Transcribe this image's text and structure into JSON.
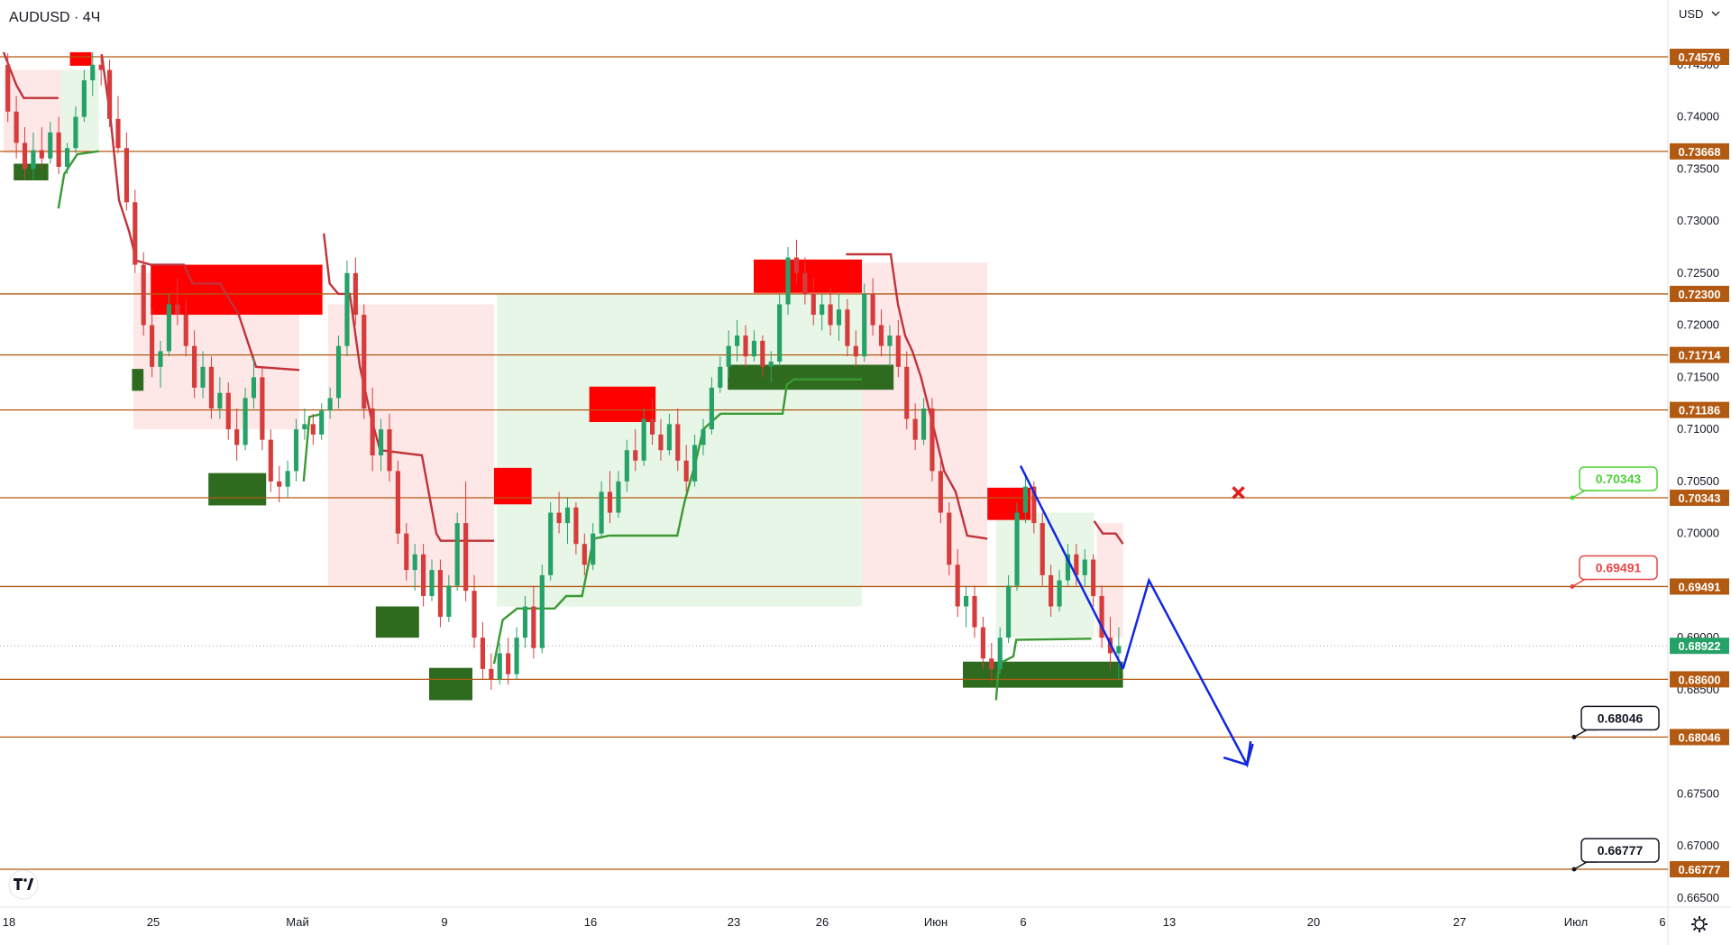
{
  "header": {
    "title": "AUDUSD · 4Ч",
    "currency_label": "USD"
  },
  "colors": {
    "level_line": "#b35a12",
    "level_label_bg": "#b35a12",
    "current_price_bg": "#26a269",
    "candle_up": "#26a269",
    "candle_down": "#d63c3c",
    "supply_zone": "#ff0000",
    "demand_zone": "#2e6b1f",
    "trail_down": "#c0333b",
    "trail_up": "#3a9a33",
    "projection": "#1226e0",
    "callout_green": "#4cd137",
    "callout_red": "#e84545",
    "callout_black": "#131722"
  },
  "icons": {
    "logo": "tradingview-logo-icon",
    "settings": "gear-icon",
    "cross": "cross-icon",
    "dropdown": "chevron-down-icon"
  },
  "chart_data": {
    "type": "candlestick",
    "symbol": "AUDUSD",
    "timeframe": "4Ч",
    "ylim": [
      0.6625,
      0.7475
    ],
    "y_ticks": [
      "0.66500",
      "0.67000",
      "0.67500",
      "0.68000",
      "0.68500",
      "0.69000",
      "0.69500",
      "0.70000",
      "0.70500",
      "0.71000",
      "0.71500",
      "0.72000",
      "0.72500",
      "0.73000",
      "0.73500",
      "0.74000",
      "0.74500"
    ],
    "x_ticks": [
      "18",
      "25",
      "Май",
      "9",
      "16",
      "23",
      "26",
      "Июн",
      "6",
      "13",
      "20",
      "27",
      "Июл",
      "6"
    ],
    "current_price": "0.68922",
    "levels": [
      "0.74576",
      "0.73668",
      "0.72300",
      "0.71714",
      "0.71186",
      "0.70343",
      "0.69491",
      "0.68600",
      "0.68046",
      "0.66777"
    ],
    "callouts": [
      {
        "label": "0.70343",
        "style": "green"
      },
      {
        "label": "0.69491",
        "style": "red"
      },
      {
        "label": "0.68046",
        "style": "black"
      },
      {
        "label": "0.66777",
        "style": "black"
      }
    ],
    "supply_zones": [
      {
        "t0": 0.046,
        "t1": 0.061,
        "p0": 0.7449,
        "p1": 0.7462
      },
      {
        "t0": 0.102,
        "t1": 0.221,
        "p0": 0.721,
        "p1": 0.7258
      },
      {
        "t0": 0.34,
        "t1": 0.366,
        "p0": 0.7028,
        "p1": 0.7063
      },
      {
        "t0": 0.406,
        "t1": 0.452,
        "p0": 0.7107,
        "p1": 0.7141
      },
      {
        "t0": 0.52,
        "t1": 0.595,
        "p0": 0.7231,
        "p1": 0.7263
      },
      {
        "t0": 0.682,
        "t1": 0.712,
        "p0": 0.7013,
        "p1": 0.7044
      }
    ],
    "demand_zones": [
      {
        "t0": 0.007,
        "t1": 0.031,
        "p0": 0.7339,
        "p1": 0.7355
      },
      {
        "t0": 0.089,
        "t1": 0.097,
        "p0": 0.7137,
        "p1": 0.7158
      },
      {
        "t0": 0.142,
        "t1": 0.182,
        "p0": 0.7027,
        "p1": 0.7058
      },
      {
        "t0": 0.258,
        "t1": 0.288,
        "p0": 0.69,
        "p1": 0.693
      },
      {
        "t0": 0.295,
        "t1": 0.325,
        "p0": 0.684,
        "p1": 0.6871
      },
      {
        "t0": 0.502,
        "t1": 0.617,
        "p0": 0.7138,
        "p1": 0.7162
      },
      {
        "t0": 0.665,
        "t1": 0.776,
        "p0": 0.6852,
        "p1": 0.6877
      }
    ],
    "trail_down_segments": [
      [
        [
          0.0,
          0.7462
        ],
        [
          0.009,
          0.743
        ],
        [
          0.014,
          0.7418
        ],
        [
          0.038,
          0.7418
        ]
      ],
      [
        [
          0.068,
          0.746
        ],
        [
          0.074,
          0.74
        ],
        [
          0.08,
          0.732
        ],
        [
          0.087,
          0.729
        ],
        [
          0.092,
          0.7262
        ],
        [
          0.102,
          0.7258
        ],
        [
          0.125,
          0.7258
        ],
        [
          0.131,
          0.724
        ],
        [
          0.15,
          0.724
        ],
        [
          0.163,
          0.721
        ],
        [
          0.175,
          0.716
        ],
        [
          0.205,
          0.7157
        ]
      ],
      [
        [
          0.222,
          0.7288
        ],
        [
          0.226,
          0.724
        ],
        [
          0.232,
          0.723
        ],
        [
          0.24,
          0.723
        ],
        [
          0.247,
          0.716
        ],
        [
          0.255,
          0.711
        ],
        [
          0.261,
          0.708
        ],
        [
          0.29,
          0.7075
        ],
        [
          0.3,
          0.7
        ],
        [
          0.303,
          0.6993
        ],
        [
          0.34,
          0.6993
        ]
      ],
      [
        [
          0.584,
          0.7268
        ],
        [
          0.615,
          0.7268
        ],
        [
          0.62,
          0.722
        ],
        [
          0.625,
          0.719
        ],
        [
          0.63,
          0.7175
        ],
        [
          0.636,
          0.715
        ],
        [
          0.645,
          0.71
        ],
        [
          0.652,
          0.706
        ],
        [
          0.66,
          0.704
        ],
        [
          0.668,
          0.6998
        ],
        [
          0.682,
          0.6995
        ]
      ],
      [
        [
          0.756,
          0.7012
        ],
        [
          0.762,
          0.7
        ],
        [
          0.771,
          0.7
        ],
        [
          0.776,
          0.699
        ]
      ]
    ],
    "trail_up_segments": [
      [
        [
          0.038,
          0.7312
        ],
        [
          0.042,
          0.7345
        ],
        [
          0.051,
          0.7364
        ],
        [
          0.066,
          0.7367
        ]
      ],
      [
        [
          0.208,
          0.705
        ],
        [
          0.212,
          0.7112
        ],
        [
          0.221,
          0.7115
        ]
      ],
      [
        [
          0.34,
          0.6875
        ],
        [
          0.346,
          0.6917
        ],
        [
          0.356,
          0.6928
        ],
        [
          0.382,
          0.6928
        ],
        [
          0.39,
          0.694
        ],
        [
          0.401,
          0.694
        ],
        [
          0.409,
          0.6995
        ],
        [
          0.42,
          0.6998
        ],
        [
          0.467,
          0.6998
        ],
        [
          0.472,
          0.703
        ],
        [
          0.48,
          0.707
        ],
        [
          0.485,
          0.71
        ],
        [
          0.497,
          0.7115
        ],
        [
          0.54,
          0.7115
        ],
        [
          0.543,
          0.7143
        ],
        [
          0.548,
          0.7148
        ],
        [
          0.595,
          0.7148
        ]
      ],
      [
        [
          0.688,
          0.684
        ],
        [
          0.69,
          0.6875
        ],
        [
          0.7,
          0.6882
        ],
        [
          0.702,
          0.6898
        ],
        [
          0.754,
          0.6899
        ]
      ]
    ],
    "shade_down": [
      {
        "t0": 0.0,
        "t1": 0.04,
        "top": 0.7445,
        "bot": 0.7365
      },
      {
        "t0": 0.09,
        "t1": 0.205,
        "top": 0.725,
        "bot": 0.71
      },
      {
        "t0": 0.225,
        "t1": 0.34,
        "top": 0.722,
        "bot": 0.695
      },
      {
        "t0": 0.595,
        "t1": 0.682,
        "top": 0.726,
        "bot": 0.695
      },
      {
        "t0": 0.758,
        "t1": 0.776,
        "top": 0.701,
        "bot": 0.69
      }
    ],
    "shade_up": [
      {
        "t0": 0.04,
        "t1": 0.066,
        "top": 0.7445,
        "bot": 0.7368
      },
      {
        "t0": 0.342,
        "t1": 0.595,
        "top": 0.723,
        "bot": 0.693
      },
      {
        "t0": 0.688,
        "t1": 0.756,
        "top": 0.702,
        "bot": 0.69
      }
    ],
    "trendline": [
      [
        0.705,
        0.7065
      ],
      [
        0.776,
        0.687
      ]
    ],
    "projection": [
      [
        0.776,
        0.687
      ],
      [
        0.794,
        0.6955
      ],
      [
        0.862,
        0.6778
      ],
      [
        0.866,
        0.6798
      ]
    ],
    "cross_marker": {
      "t": 0.856,
      "p": 0.7034
    },
    "candles": [
      [
        0.745,
        0.7461,
        0.7395,
        0.7405
      ],
      [
        0.7405,
        0.742,
        0.736,
        0.7375
      ],
      [
        0.7375,
        0.739,
        0.734,
        0.735
      ],
      [
        0.735,
        0.7385,
        0.734,
        0.7368
      ],
      [
        0.7368,
        0.739,
        0.735,
        0.736
      ],
      [
        0.736,
        0.7395,
        0.7355,
        0.7385
      ],
      [
        0.7385,
        0.74,
        0.7345,
        0.7352
      ],
      [
        0.7352,
        0.7375,
        0.7345,
        0.737
      ],
      [
        0.737,
        0.741,
        0.7365,
        0.74
      ],
      [
        0.74,
        0.7445,
        0.7395,
        0.7435
      ],
      [
        0.7435,
        0.7462,
        0.742,
        0.745
      ],
      [
        0.745,
        0.746,
        0.743,
        0.7445
      ],
      [
        0.7445,
        0.7455,
        0.739,
        0.7398
      ],
      [
        0.7398,
        0.742,
        0.7365,
        0.737
      ],
      [
        0.737,
        0.7385,
        0.731,
        0.7318
      ],
      [
        0.7318,
        0.733,
        0.725,
        0.7258
      ],
      [
        0.7258,
        0.727,
        0.719,
        0.72
      ],
      [
        0.72,
        0.7215,
        0.715,
        0.716
      ],
      [
        0.716,
        0.7185,
        0.714,
        0.7175
      ],
      [
        0.7175,
        0.723,
        0.717,
        0.722
      ],
      [
        0.722,
        0.7245,
        0.72,
        0.721
      ],
      [
        0.721,
        0.7225,
        0.717,
        0.718
      ],
      [
        0.718,
        0.7195,
        0.713,
        0.714
      ],
      [
        0.714,
        0.7175,
        0.713,
        0.716
      ],
      [
        0.716,
        0.717,
        0.711,
        0.712
      ],
      [
        0.712,
        0.715,
        0.711,
        0.7135
      ],
      [
        0.7135,
        0.7145,
        0.709,
        0.71
      ],
      [
        0.71,
        0.712,
        0.707,
        0.7085
      ],
      [
        0.7085,
        0.714,
        0.708,
        0.713
      ],
      [
        0.713,
        0.717,
        0.712,
        0.715
      ],
      [
        0.715,
        0.716,
        0.708,
        0.709
      ],
      [
        0.709,
        0.71,
        0.704,
        0.705
      ],
      [
        0.705,
        0.7065,
        0.703,
        0.7045
      ],
      [
        0.7045,
        0.707,
        0.7035,
        0.706
      ],
      [
        0.706,
        0.711,
        0.705,
        0.71
      ],
      [
        0.71,
        0.712,
        0.709,
        0.7105
      ],
      [
        0.7105,
        0.7115,
        0.7085,
        0.7095
      ],
      [
        0.7095,
        0.7125,
        0.709,
        0.7118
      ],
      [
        0.7118,
        0.714,
        0.711,
        0.713
      ],
      [
        0.713,
        0.719,
        0.712,
        0.718
      ],
      [
        0.718,
        0.7262,
        0.717,
        0.725
      ],
      [
        0.725,
        0.7265,
        0.72,
        0.721
      ],
      [
        0.721,
        0.722,
        0.711,
        0.712
      ],
      [
        0.712,
        0.714,
        0.706,
        0.7075
      ],
      [
        0.7075,
        0.711,
        0.706,
        0.71
      ],
      [
        0.71,
        0.7115,
        0.705,
        0.706
      ],
      [
        0.706,
        0.707,
        0.699,
        0.7
      ],
      [
        0.7,
        0.701,
        0.6955,
        0.6965
      ],
      [
        0.6965,
        0.699,
        0.6945,
        0.698
      ],
      [
        0.698,
        0.699,
        0.693,
        0.694
      ],
      [
        0.694,
        0.6975,
        0.6935,
        0.6965
      ],
      [
        0.6965,
        0.6975,
        0.691,
        0.692
      ],
      [
        0.692,
        0.696,
        0.6915,
        0.695
      ],
      [
        0.695,
        0.702,
        0.6945,
        0.701
      ],
      [
        0.701,
        0.705,
        0.6935,
        0.6945
      ],
      [
        0.6945,
        0.696,
        0.689,
        0.69
      ],
      [
        0.69,
        0.6915,
        0.686,
        0.687
      ],
      [
        0.687,
        0.6885,
        0.685,
        0.686
      ],
      [
        0.686,
        0.6895,
        0.6855,
        0.6885
      ],
      [
        0.6885,
        0.69,
        0.6855,
        0.6865
      ],
      [
        0.6865,
        0.691,
        0.686,
        0.69
      ],
      [
        0.69,
        0.694,
        0.689,
        0.693
      ],
      [
        0.693,
        0.695,
        0.688,
        0.689
      ],
      [
        0.689,
        0.697,
        0.6885,
        0.696
      ],
      [
        0.696,
        0.703,
        0.6955,
        0.702
      ],
      [
        0.702,
        0.704,
        0.7,
        0.701
      ],
      [
        0.701,
        0.7035,
        0.699,
        0.7025
      ],
      [
        0.7025,
        0.703,
        0.698,
        0.699
      ],
      [
        0.699,
        0.7,
        0.696,
        0.697
      ],
      [
        0.697,
        0.701,
        0.6965,
        0.7
      ],
      [
        0.7,
        0.705,
        0.6995,
        0.704
      ],
      [
        0.704,
        0.706,
        0.701,
        0.702
      ],
      [
        0.702,
        0.706,
        0.7015,
        0.705
      ],
      [
        0.705,
        0.709,
        0.704,
        0.708
      ],
      [
        0.708,
        0.71,
        0.706,
        0.707
      ],
      [
        0.707,
        0.712,
        0.7065,
        0.711
      ],
      [
        0.711,
        0.713,
        0.7085,
        0.7095
      ],
      [
        0.7095,
        0.711,
        0.707,
        0.708
      ],
      [
        0.708,
        0.7115,
        0.7075,
        0.7105
      ],
      [
        0.7105,
        0.712,
        0.706,
        0.707
      ],
      [
        0.707,
        0.7085,
        0.704,
        0.705
      ],
      [
        0.705,
        0.7095,
        0.7045,
        0.7085
      ],
      [
        0.7085,
        0.711,
        0.7075,
        0.71
      ],
      [
        0.71,
        0.715,
        0.7095,
        0.714
      ],
      [
        0.714,
        0.717,
        0.7135,
        0.716
      ],
      [
        0.716,
        0.7195,
        0.715,
        0.718
      ],
      [
        0.718,
        0.7205,
        0.7165,
        0.719
      ],
      [
        0.719,
        0.72,
        0.716,
        0.717
      ],
      [
        0.717,
        0.7195,
        0.7165,
        0.7185
      ],
      [
        0.7185,
        0.719,
        0.715,
        0.716
      ],
      [
        0.716,
        0.7175,
        0.7145,
        0.7165
      ],
      [
        0.7165,
        0.723,
        0.716,
        0.722
      ],
      [
        0.722,
        0.7275,
        0.721,
        0.7265
      ],
      [
        0.7265,
        0.7282,
        0.724,
        0.725
      ],
      [
        0.725,
        0.7265,
        0.722,
        0.723
      ],
      [
        0.723,
        0.7245,
        0.72,
        0.721
      ],
      [
        0.721,
        0.723,
        0.7195,
        0.722
      ],
      [
        0.722,
        0.7235,
        0.719,
        0.72
      ],
      [
        0.72,
        0.723,
        0.7185,
        0.7215
      ],
      [
        0.7215,
        0.7225,
        0.717,
        0.718
      ],
      [
        0.718,
        0.7195,
        0.716,
        0.717
      ],
      [
        0.717,
        0.724,
        0.7165,
        0.723
      ],
      [
        0.723,
        0.7245,
        0.719,
        0.72
      ],
      [
        0.72,
        0.7215,
        0.717,
        0.718
      ],
      [
        0.718,
        0.72,
        0.716,
        0.719
      ],
      [
        0.719,
        0.7205,
        0.715,
        0.716
      ],
      [
        0.716,
        0.7175,
        0.71,
        0.711
      ],
      [
        0.711,
        0.7125,
        0.708,
        0.709
      ],
      [
        0.709,
        0.713,
        0.7085,
        0.712
      ],
      [
        0.712,
        0.713,
        0.705,
        0.706
      ],
      [
        0.706,
        0.707,
        0.701,
        0.702
      ],
      [
        0.702,
        0.703,
        0.696,
        0.697
      ],
      [
        0.697,
        0.6985,
        0.692,
        0.693
      ],
      [
        0.693,
        0.695,
        0.691,
        0.694
      ],
      [
        0.694,
        0.695,
        0.69,
        0.691
      ],
      [
        0.691,
        0.692,
        0.687,
        0.688
      ],
      [
        0.688,
        0.6895,
        0.6858,
        0.687
      ],
      [
        0.687,
        0.691,
        0.6865,
        0.69
      ],
      [
        0.69,
        0.696,
        0.6895,
        0.695
      ],
      [
        0.695,
        0.703,
        0.6945,
        0.702
      ],
      [
        0.702,
        0.7058,
        0.701,
        0.7045
      ],
      [
        0.7045,
        0.705,
        0.7,
        0.701
      ],
      [
        0.701,
        0.702,
        0.695,
        0.696
      ],
      [
        0.696,
        0.697,
        0.692,
        0.693
      ],
      [
        0.693,
        0.6965,
        0.6925,
        0.6955
      ],
      [
        0.6955,
        0.699,
        0.695,
        0.698
      ],
      [
        0.698,
        0.699,
        0.695,
        0.696
      ],
      [
        0.696,
        0.6985,
        0.695,
        0.6975
      ],
      [
        0.6975,
        0.698,
        0.693,
        0.694
      ],
      [
        0.694,
        0.695,
        0.689,
        0.69
      ],
      [
        0.69,
        0.692,
        0.687,
        0.6885
      ],
      [
        0.6885,
        0.691,
        0.686,
        0.6892
      ]
    ]
  }
}
